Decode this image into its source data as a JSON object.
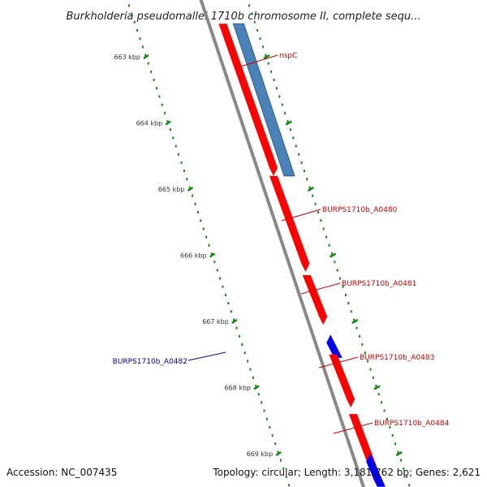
{
  "title": "Burkholderia pseudomallei 1710b chromosome II, complete sequ...",
  "footer": {
    "accession": "Accession: NC_007435",
    "topology": "Topology: circular; Length: 3,181,762 bp; Genes: 2,621"
  },
  "colors": {
    "backbone": "#888888",
    "tick_dots": "#118811",
    "forward_gene": "#ff0000",
    "reverse_gene": "#0000ee",
    "selected_region": "#4a82b8",
    "label_red": "#cc0000",
    "label_blue": "#0000aa"
  },
  "scale": {
    "unit": "kbp",
    "ticks": [
      {
        "value": 663,
        "label": "663 kbp"
      },
      {
        "value": 664,
        "label": "664 kbp"
      },
      {
        "value": 665,
        "label": "665 kbp"
      },
      {
        "value": 666,
        "label": "666 kbp"
      },
      {
        "value": 667,
        "label": "667 kbp"
      },
      {
        "value": 668,
        "label": "668 kbp"
      },
      {
        "value": 669,
        "label": "669 kbp"
      }
    ]
  },
  "features": [
    {
      "name": "nspC",
      "strand": "forward",
      "start": 662.5,
      "end": 664.8,
      "color_key": "selected_region"
    },
    {
      "name": "",
      "strand": "forward",
      "start": 662.5,
      "end": 664.8,
      "color_key": "forward_gene"
    },
    {
      "name": "BURPS1710b_A0480",
      "strand": "forward",
      "start": 664.8,
      "end": 666.25,
      "color_key": "forward_gene"
    },
    {
      "name": "BURPS1710b_A0481",
      "strand": "forward",
      "start": 666.3,
      "end": 667.05,
      "color_key": "forward_gene"
    },
    {
      "name": "BURPS1710b_A0482",
      "strand": "reverse",
      "start": 667.2,
      "end": 667.55,
      "color_key": "reverse_gene"
    },
    {
      "name": "BURPS1710b_A0483",
      "strand": "forward",
      "start": 667.5,
      "end": 668.3,
      "color_key": "forward_gene"
    },
    {
      "name": "BURPS1710b_A0484",
      "strand": "forward",
      "start": 668.4,
      "end": 669.5,
      "color_key": "forward_gene"
    },
    {
      "name": "",
      "strand": "reverse",
      "start": 669.0,
      "end": 669.5,
      "color_key": "reverse_gene"
    }
  ],
  "gene_labels": [
    {
      "text": "nspC",
      "color_key": "label_red"
    },
    {
      "text": "BURPS1710b_A0480",
      "color_key": "label_red"
    },
    {
      "text": "BURPS1710b_A0481",
      "color_key": "label_red"
    },
    {
      "text": "BURPS1710b_A0482",
      "color_key": "label_blue"
    },
    {
      "text": "BURPS1710b_A0483",
      "color_key": "label_red"
    },
    {
      "text": "BURPS1710b_A0484",
      "color_key": "label_red"
    }
  ]
}
